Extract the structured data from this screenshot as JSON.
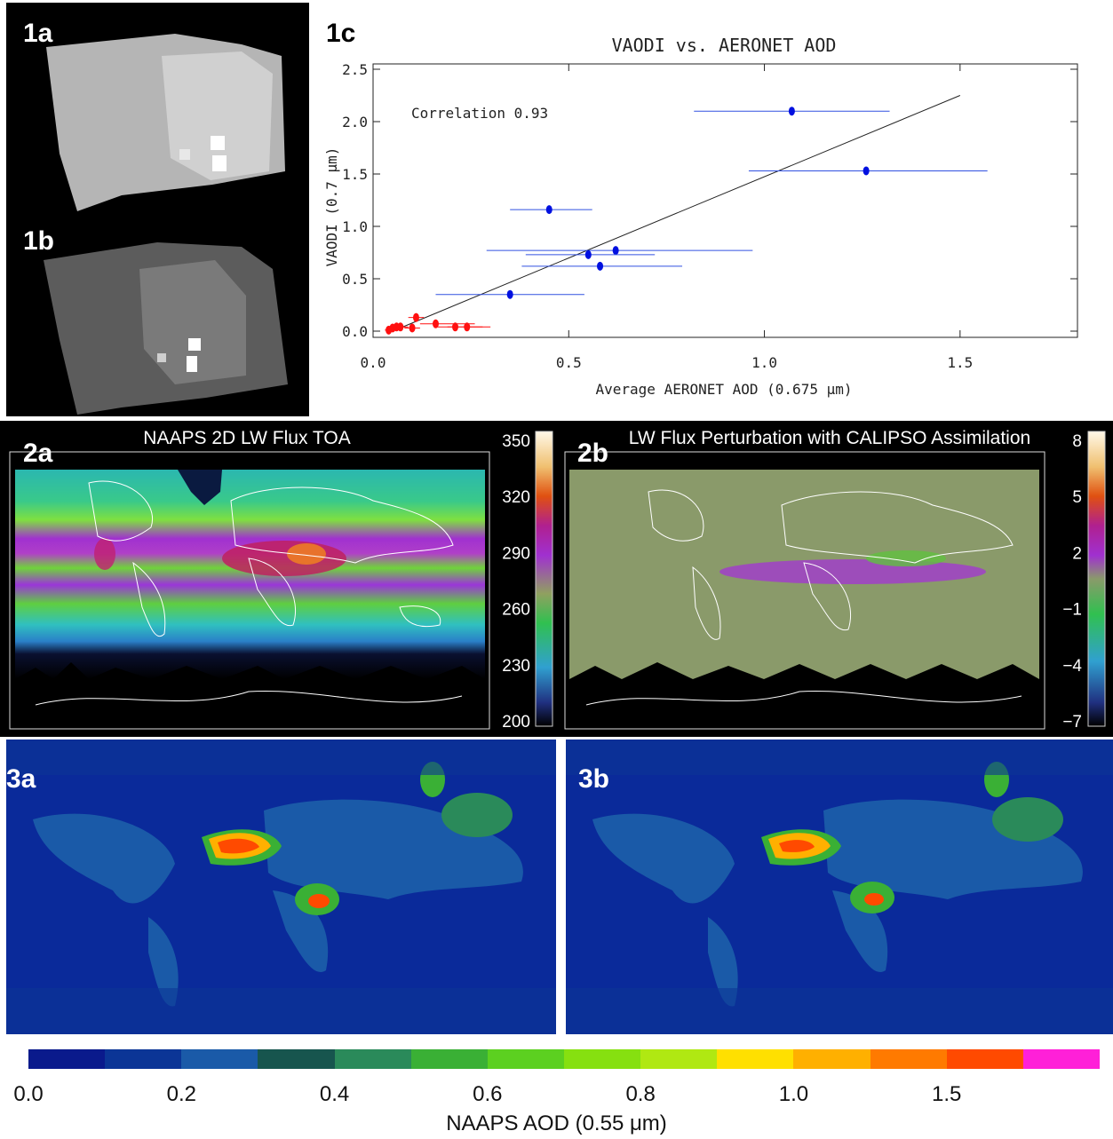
{
  "panels": {
    "p1a": "1a",
    "p1b": "1b",
    "p1c": "1c",
    "p2a": "2a",
    "p2b": "2b",
    "p3a": "3a",
    "p3b": "3b"
  },
  "chart_data": [
    {
      "type": "scatter",
      "title": "VAODI vs. AERONET AOD",
      "xlabel": "Average AERONET AOD (0.675 μm)",
      "ylabel": "VAODI (0.7 μm)",
      "xlim": [
        0,
        1.8
      ],
      "ylim": [
        0,
        2.5
      ],
      "x_ticks": [
        "0.0",
        "0.5",
        "1.0",
        "1.5"
      ],
      "y_ticks": [
        "0.0",
        "0.5",
        "1.0",
        "1.5",
        "2.0",
        "2.5"
      ],
      "annotation": "Correlation 0.93",
      "series": [
        {
          "color": "#0010e0",
          "points": [
            {
              "x": 1.07,
              "y": 2.1,
              "xmin": 0.82,
              "xmax": 1.32
            },
            {
              "x": 1.26,
              "y": 1.53,
              "xmin": 0.96,
              "xmax": 1.57
            },
            {
              "x": 0.45,
              "y": 1.16,
              "xmin": 0.35,
              "xmax": 0.56
            },
            {
              "x": 0.62,
              "y": 0.77,
              "xmin": 0.29,
              "xmax": 0.97
            },
            {
              "x": 0.55,
              "y": 0.73,
              "xmin": 0.39,
              "xmax": 0.72
            },
            {
              "x": 0.58,
              "y": 0.62,
              "xmin": 0.38,
              "xmax": 0.79
            },
            {
              "x": 0.35,
              "y": 0.35,
              "xmin": 0.16,
              "xmax": 0.54
            }
          ]
        },
        {
          "color": "#ff1010",
          "points": [
            {
              "x": 0.04,
              "y": 0.01,
              "xmin": 0.03,
              "xmax": 0.05
            },
            {
              "x": 0.05,
              "y": 0.03,
              "xmin": 0.04,
              "xmax": 0.06
            },
            {
              "x": 0.06,
              "y": 0.04,
              "xmin": 0.05,
              "xmax": 0.08
            },
            {
              "x": 0.07,
              "y": 0.04,
              "xmin": 0.06,
              "xmax": 0.09
            },
            {
              "x": 0.1,
              "y": 0.03,
              "xmin": 0.08,
              "xmax": 0.12
            },
            {
              "x": 0.11,
              "y": 0.13,
              "xmin": 0.09,
              "xmax": 0.13
            },
            {
              "x": 0.16,
              "y": 0.07,
              "xmin": 0.12,
              "xmax": 0.26
            },
            {
              "x": 0.21,
              "y": 0.04,
              "xmin": 0.16,
              "xmax": 0.28
            },
            {
              "x": 0.24,
              "y": 0.04,
              "xmin": 0.19,
              "xmax": 0.3
            }
          ]
        }
      ],
      "fit_line": {
        "x": [
          0.05,
          1.5
        ],
        "y": [
          0.0,
          2.25
        ]
      }
    },
    {
      "type": "heatmap",
      "title": "NAAPS 2D LW Flux TOA",
      "colorbar_ticks": [
        "350",
        "320",
        "290",
        "260",
        "230",
        "200"
      ]
    },
    {
      "type": "heatmap",
      "title": "LW Flux Perturbation with CALIPSO Assimilation",
      "colorbar_ticks": [
        "8",
        "5",
        "2",
        "−1",
        "−4",
        "−7"
      ]
    },
    {
      "type": "heatmap",
      "colorbar_label": "NAAPS AOD (0.55 μm)",
      "colorbar_ticks": [
        "0.0",
        "0.2",
        "0.4",
        "0.6",
        "0.8",
        "1.0",
        "1.5"
      ],
      "colorbar_colors": [
        "#0a1a8c",
        "#0b3596",
        "#1a5aa8",
        "#17554e",
        "#2a8a5a",
        "#3ab035",
        "#5cd020",
        "#86e010",
        "#b0e812",
        "#ffe000",
        "#ffb000",
        "#ff7a00",
        "#ff4a00",
        "#ff20d8"
      ]
    }
  ],
  "colors": {
    "blue_points": "#0010e0",
    "red_points": "#ff1010",
    "errorbar_blue": "#3050e0",
    "fit_line": "#222222"
  }
}
